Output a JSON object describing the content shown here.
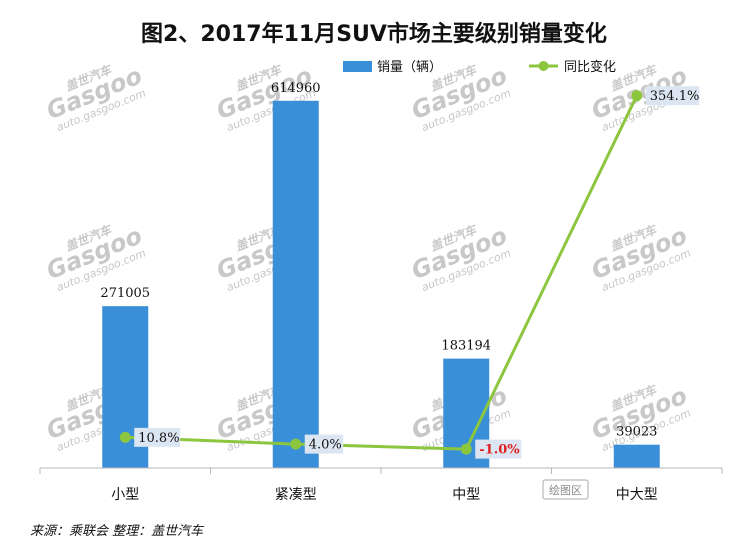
{
  "chart_data": {
    "type": "bar",
    "title": "图2、2017年11月SUV市场主要级别销量变化",
    "categories": [
      "小型",
      "紧凑型",
      "中型",
      "中大型"
    ],
    "series": [
      {
        "name": "销量（辆）",
        "type": "bar",
        "axis": "left",
        "color": "#3a8fd9",
        "values": [
          271005,
          614960,
          183194,
          39023
        ],
        "labels": [
          "271005",
          "614960",
          "183194",
          "39023"
        ]
      },
      {
        "name": "同比变化",
        "type": "line",
        "axis": "right",
        "color": "#8cc63f",
        "values": [
          10.8,
          4.0,
          -1.0,
          354.1
        ],
        "labels": [
          "10.8%",
          "4.0%",
          "-1.0%",
          "354.1%"
        ],
        "label_colors": [
          "#111111",
          "#111111",
          "#e02020",
          "#111111"
        ]
      }
    ],
    "left_axis_range": [
      0,
      700000
    ],
    "right_axis_range": [
      -20,
      400
    ],
    "legend_position": "top-right",
    "grid": false,
    "source": "来源：乘联会    整理：盖世汽车",
    "watermark": {
      "brand": "盖世汽车",
      "logo": "Gasgoo",
      "url": "auto.gasgoo.com"
    },
    "tool_button": "绘图区"
  }
}
